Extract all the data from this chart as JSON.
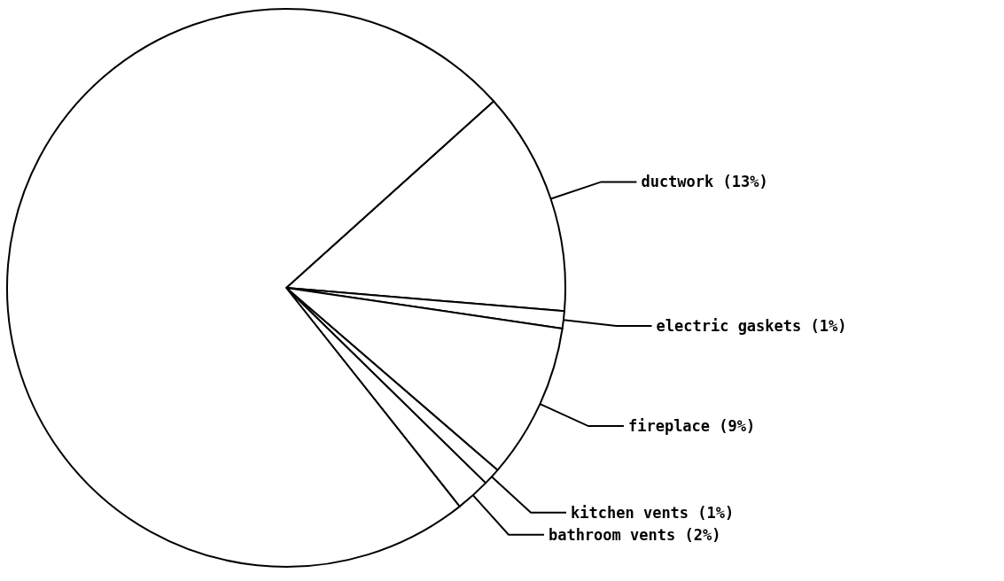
{
  "chart_data": {
    "type": "pie",
    "categories": [
      "ductwork (13%)",
      "electric gaskets (1%)",
      "fireplace (9%)",
      "kitchen vents (1%)",
      "bathroom vents (2%)",
      null
    ],
    "values": [
      13,
      1,
      9,
      1,
      2,
      74
    ],
    "colors": [
      "#ffffff",
      "#ffffff",
      "#ffffff",
      "#ffffff",
      "#ffffff",
      "#ffffff"
    ],
    "legend": false
  }
}
